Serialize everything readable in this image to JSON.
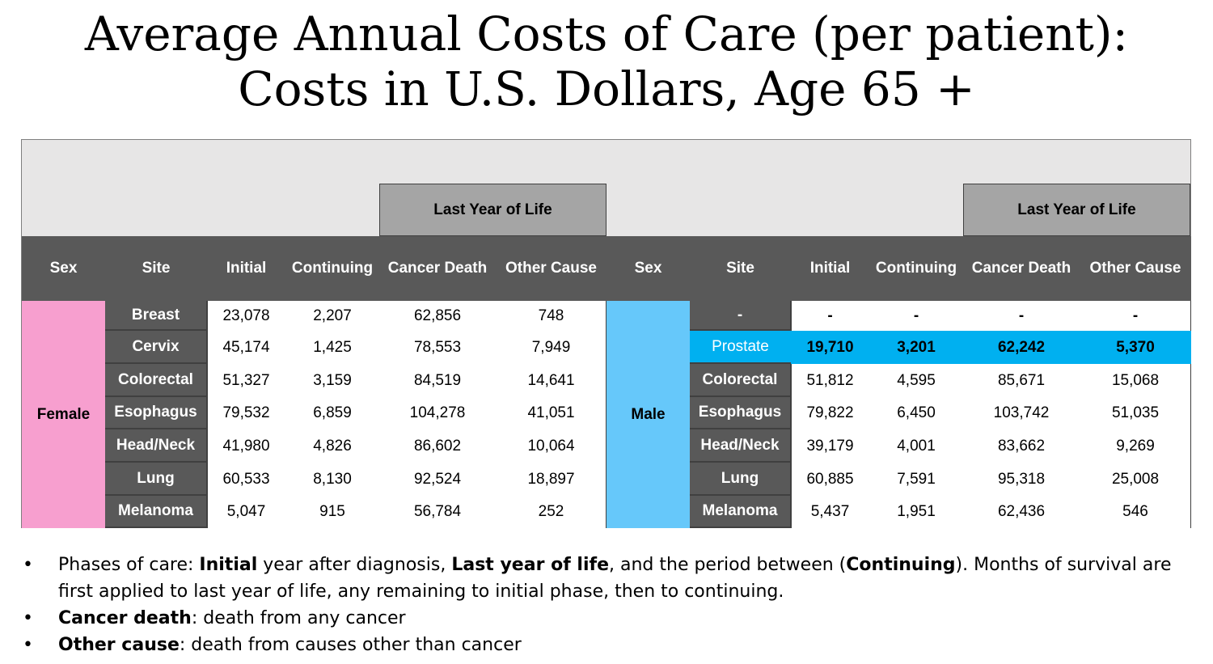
{
  "title": {
    "line1": "Average Annual Costs of Care (per patient):",
    "line2": "Costs in U.S. Dollars, Age 65 +"
  },
  "table": {
    "group_header": "Last Year of Life",
    "headers": [
      "Sex",
      "Site",
      "Initial",
      "Continuing",
      "Cancer Death",
      "Other Cause"
    ],
    "female": {
      "sex": "Female",
      "rows": [
        {
          "site": "Breast",
          "initial": "23,078",
          "continuing": "2,207",
          "cancer_death": "62,856",
          "other_cause": "748"
        },
        {
          "site": "Cervix",
          "initial": "45,174",
          "continuing": "1,425",
          "cancer_death": "78,553",
          "other_cause": "7,949"
        },
        {
          "site": "Colorectal",
          "initial": "51,327",
          "continuing": "3,159",
          "cancer_death": "84,519",
          "other_cause": "14,641"
        },
        {
          "site": "Esophagus",
          "initial": "79,532",
          "continuing": "6,859",
          "cancer_death": "104,278",
          "other_cause": "41,051"
        },
        {
          "site": "Head/Neck",
          "initial": "41,980",
          "continuing": "4,826",
          "cancer_death": "86,602",
          "other_cause": "10,064"
        },
        {
          "site": "Lung",
          "initial": "60,533",
          "continuing": "8,130",
          "cancer_death": "92,524",
          "other_cause": "18,897"
        },
        {
          "site": "Melanoma",
          "initial": "5,047",
          "continuing": "915",
          "cancer_death": "56,784",
          "other_cause": "252"
        }
      ]
    },
    "male": {
      "sex": "Male",
      "rows": [
        {
          "site": "-",
          "initial": "-",
          "continuing": "-",
          "cancer_death": "-",
          "other_cause": "-"
        },
        {
          "site": "Prostate",
          "initial": "19,710",
          "continuing": "3,201",
          "cancer_death": "62,242",
          "other_cause": "5,370"
        },
        {
          "site": "Colorectal",
          "initial": "51,812",
          "continuing": "4,595",
          "cancer_death": "85,671",
          "other_cause": "15,068"
        },
        {
          "site": "Esophagus",
          "initial": "79,822",
          "continuing": "6,450",
          "cancer_death": "103,742",
          "other_cause": "51,035"
        },
        {
          "site": "Head/Neck",
          "initial": "39,179",
          "continuing": "4,001",
          "cancer_death": "83,662",
          "other_cause": "9,269"
        },
        {
          "site": "Lung",
          "initial": "60,885",
          "continuing": "7,591",
          "cancer_death": "95,318",
          "other_cause": "25,008"
        },
        {
          "site": "Melanoma",
          "initial": "5,437",
          "continuing": "1,951",
          "cancer_death": "62,436",
          "other_cause": "546"
        }
      ]
    },
    "colors": {
      "header_bg": "#595959",
      "group_header_bg": "#a5a5a5",
      "female_bg": "#f79fcf",
      "male_bg": "#66c8fa",
      "highlight_bg": "#00b0f0"
    }
  },
  "notes": {
    "bullet": "•",
    "n1_pre": "Phases of care:  ",
    "n1_b1": "Initial",
    "n1_mid1": " year after diagnosis, ",
    "n1_b2": "Last year of life",
    "n1_mid2": ", and the period between (",
    "n1_b3": "Continuing",
    "n1_post": "). Months of survival are first applied to last year of life, any remaining to initial phase, then to continuing.",
    "n2_b": "Cancer death",
    "n2_post": ": death from any cancer",
    "n3_b": "Other cause",
    "n3_post": ": death from causes other than cancer"
  }
}
